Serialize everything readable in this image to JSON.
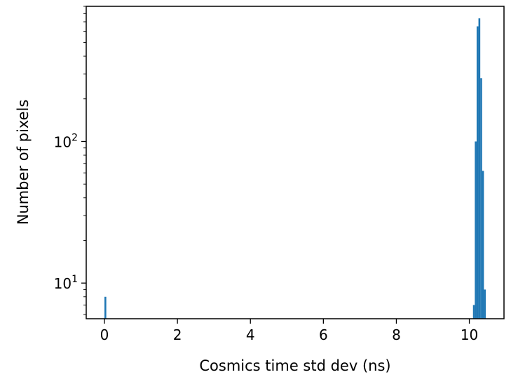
{
  "chart_data": {
    "type": "bar",
    "title": "",
    "xlabel": "Cosmics time std dev (ns)",
    "ylabel": "Number of pixels",
    "y_scale": "log",
    "xlim": [
      -0.5,
      10.95
    ],
    "ylim": [
      5.6,
      900
    ],
    "x_ticks": [
      0,
      2,
      4,
      6,
      8,
      10
    ],
    "x_tick_labels": [
      "0",
      "2",
      "4",
      "6",
      "8",
      "10"
    ],
    "y_ticks": [
      10,
      100
    ],
    "y_tick_base": "10",
    "y_tick_exponents": [
      "1",
      "2"
    ],
    "grid": false,
    "legend": "none",
    "color": "#1f77b4",
    "bin_width": 0.05,
    "bins": [
      {
        "x": 0.0,
        "count": 8
      },
      {
        "x": 10.1,
        "count": 7
      },
      {
        "x": 10.15,
        "count": 100
      },
      {
        "x": 10.2,
        "count": 650
      },
      {
        "x": 10.25,
        "count": 740
      },
      {
        "x": 10.3,
        "count": 280
      },
      {
        "x": 10.35,
        "count": 62
      },
      {
        "x": 10.4,
        "count": 9
      }
    ]
  }
}
